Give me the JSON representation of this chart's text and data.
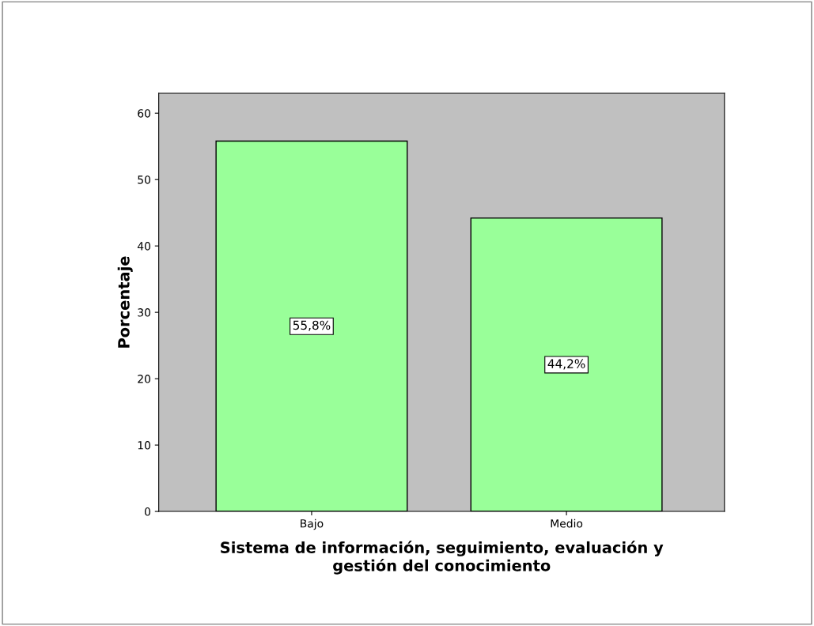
{
  "chart_data": {
    "type": "bar",
    "xlabel": "Sistema de información, seguimiento, evaluación y\ngestión del conocimiento",
    "ylabel": "Porcentaje",
    "categories": [
      "Bajo",
      "Medio"
    ],
    "values": [
      55.8,
      44.2
    ],
    "value_labels": [
      "55,8%",
      "44,2%"
    ],
    "color": "#99ff99",
    "ylim": [
      0,
      63
    ],
    "yticks": [
      0,
      10,
      20,
      30,
      40,
      50,
      60
    ],
    "grid": false,
    "legend": false
  }
}
